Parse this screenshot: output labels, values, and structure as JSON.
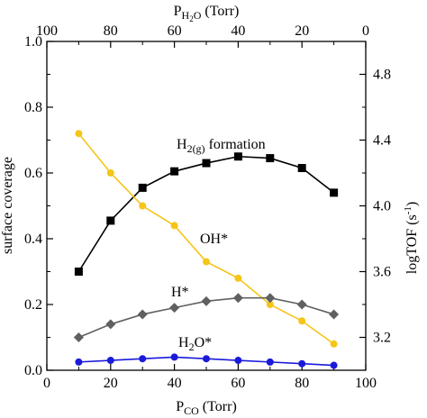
{
  "chart_data": {
    "type": "line",
    "x_bottom": {
      "label_main": "P",
      "label_sub": "CO",
      "label_unit": " (Torr)",
      "range": [
        0,
        100
      ],
      "ticks": [
        0,
        20,
        40,
        60,
        80,
        100
      ]
    },
    "x_top": {
      "label_main": "P",
      "label_sub": "H",
      "label_sub2": "2",
      "label_sub3": "O",
      "label_unit": " (Torr)",
      "range": [
        100,
        0
      ],
      "ticks": [
        100,
        80,
        60,
        40,
        20,
        0
      ]
    },
    "y_left": {
      "label": "surface coverage",
      "range": [
        0,
        1.0
      ],
      "ticks": [
        "0.0",
        "0.2",
        "0.4",
        "0.6",
        "0.8",
        "1.0"
      ]
    },
    "y_right": {
      "label_main": "logTOF (s",
      "label_sup": "-1",
      "label_end": ")",
      "range": [
        3.0,
        5.0
      ],
      "ticks": [
        "3.2",
        "3.6",
        "4.0",
        "4.4",
        "4.8"
      ]
    },
    "x": [
      10,
      20,
      30,
      40,
      50,
      60,
      70,
      80,
      90
    ],
    "series": [
      {
        "key": "h2",
        "label_main": "H",
        "label_sub": "2(g)",
        "label_end": " formation",
        "axis": "right",
        "marker": "square",
        "color": "#000000",
        "values": [
          3.6,
          3.91,
          4.11,
          4.21,
          4.26,
          4.3,
          4.29,
          4.23,
          4.08
        ]
      },
      {
        "key": "oh",
        "label_main": "OH*",
        "axis": "left",
        "marker": "circle",
        "color": "#f5c518",
        "values": [
          0.72,
          0.6,
          0.5,
          0.44,
          0.33,
          0.28,
          0.2,
          0.15,
          0.08
        ]
      },
      {
        "key": "h",
        "label_main": "H*",
        "axis": "left",
        "marker": "diamond",
        "color": "#606060",
        "values": [
          0.1,
          0.14,
          0.17,
          0.19,
          0.21,
          0.22,
          0.22,
          0.2,
          0.17
        ]
      },
      {
        "key": "h2o",
        "label_main": "H",
        "label_sub": "2",
        "label_end": "O*",
        "axis": "left",
        "marker": "circle",
        "color": "#1a1adb",
        "values": [
          0.025,
          0.03,
          0.035,
          0.04,
          0.035,
          0.03,
          0.025,
          0.02,
          0.015
        ]
      }
    ]
  }
}
